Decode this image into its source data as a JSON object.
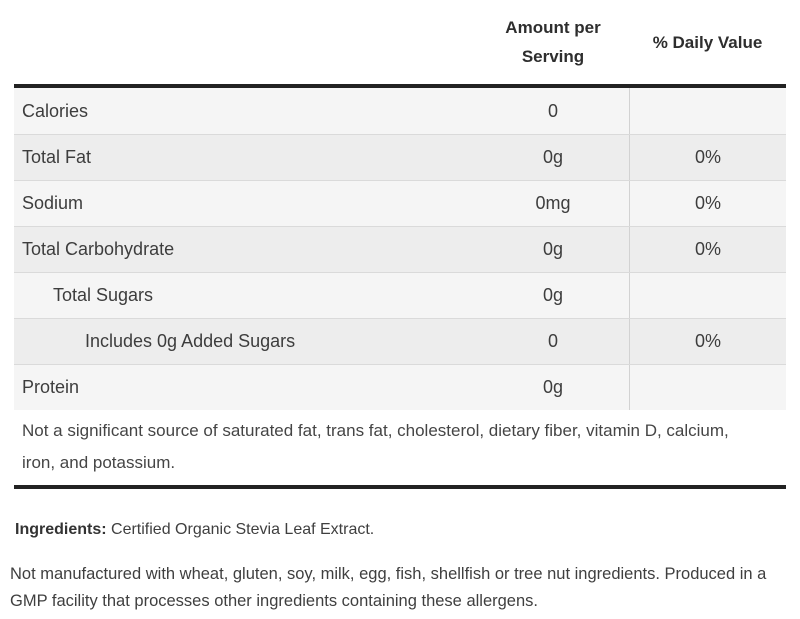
{
  "table": {
    "headers": {
      "amount": "Amount per Serving",
      "daily_value": "% Daily Value"
    },
    "rows": [
      {
        "label": "Calories",
        "amount": "0",
        "daily_value": "",
        "indent": 0
      },
      {
        "label": "Total Fat",
        "amount": "0g",
        "daily_value": "0%",
        "indent": 0
      },
      {
        "label": "Sodium",
        "amount": "0mg",
        "daily_value": "0%",
        "indent": 0
      },
      {
        "label": "Total Carbohydrate",
        "amount": "0g",
        "daily_value": "0%",
        "indent": 0
      },
      {
        "label": "Total Sugars",
        "amount": "0g",
        "daily_value": "",
        "indent": 1
      },
      {
        "label": "Includes 0g Added Sugars",
        "amount": "0",
        "daily_value": "0%",
        "indent": 2
      },
      {
        "label": "Protein",
        "amount": "0g",
        "daily_value": "",
        "indent": 0
      }
    ],
    "footnote": "Not a significant source of saturated fat, trans fat, cholesterol, dietary fiber, vitamin D, calcium, iron, and potassium."
  },
  "ingredients": {
    "label": "Ingredients:",
    "text": "Certified Organic Stevia Leaf Extract."
  },
  "allergen_statement": "Not manufactured with wheat, gluten, soy, milk, egg, fish, shellfish or tree nut ingredients. Produced in a GMP facility that processes other ingredients containing these allergens.",
  "colors": {
    "rule_dark": "#222222",
    "row_light": "#f5f5f5",
    "row_dark": "#ededed",
    "row_separator": "#dadada",
    "column_divider": "#d2d2d2",
    "text": "#3d3d3d"
  }
}
